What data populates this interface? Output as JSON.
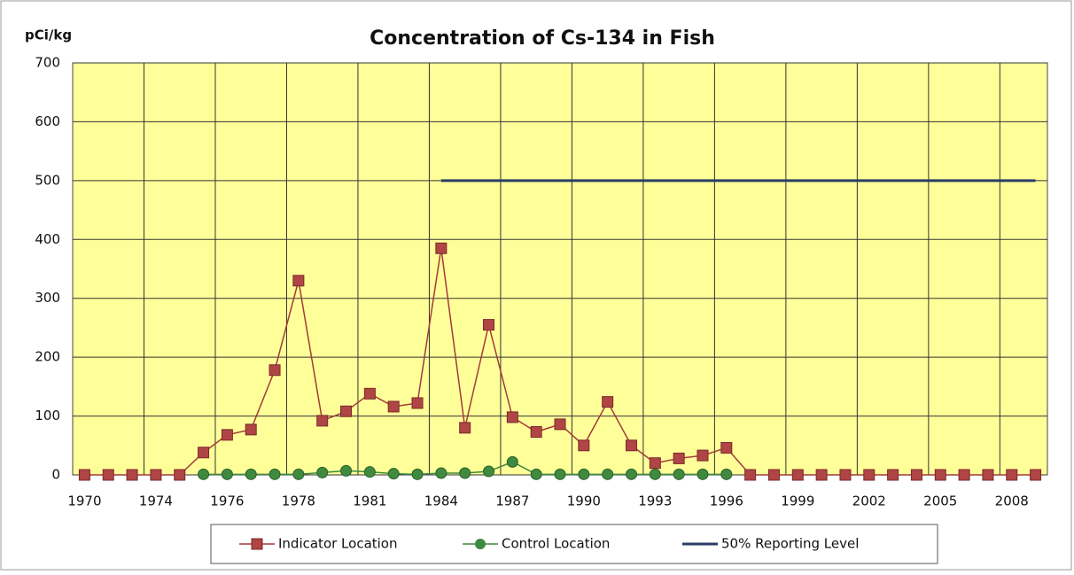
{
  "chart_data": {
    "type": "line",
    "title": "Concentration of Cs-134 in Fish",
    "y_label": "pCi/kg",
    "categories": [
      "1970",
      null,
      null,
      "1974",
      null,
      null,
      "1976",
      null,
      null,
      "1978",
      null,
      null,
      "1981",
      null,
      null,
      "1984",
      null,
      null,
      "1987",
      null,
      null,
      "1990",
      null,
      null,
      "1993",
      null,
      null,
      "1996",
      null,
      null,
      "1999",
      null,
      null,
      "2002",
      null,
      null,
      "2005",
      null,
      null,
      "2008",
      null
    ],
    "series": [
      {
        "name": "Indicator Location",
        "color": "#a33a3a",
        "marker": "square",
        "values": [
          0,
          0,
          0,
          0,
          0,
          38,
          68,
          77,
          178,
          330,
          92,
          108,
          138,
          116,
          122,
          385,
          80,
          255,
          98,
          73,
          86,
          50,
          124,
          50,
          20,
          28,
          33,
          46,
          0,
          0,
          0,
          0,
          0,
          0,
          0,
          0,
          0,
          0,
          0,
          0,
          0
        ]
      },
      {
        "name": "Control Location",
        "color": "#3f8a3f",
        "marker": "circle",
        "values": [
          null,
          null,
          null,
          null,
          null,
          1,
          1,
          1,
          1,
          1,
          4,
          7,
          5,
          2,
          1,
          3,
          3,
          6,
          22,
          1,
          1,
          1,
          1,
          1,
          1,
          1,
          1,
          1,
          null,
          null,
          null,
          null,
          null,
          null,
          null,
          null,
          null,
          null,
          null,
          null,
          null
        ]
      },
      {
        "name": "50% Reporting Level",
        "color": "#2a3d66",
        "marker": "none",
        "values": [
          null,
          null,
          null,
          null,
          null,
          null,
          null,
          null,
          null,
          null,
          null,
          null,
          null,
          null,
          null,
          500,
          500,
          500,
          500,
          500,
          500,
          500,
          500,
          500,
          500,
          500,
          500,
          500,
          500,
          500,
          500,
          500,
          500,
          500,
          500,
          500,
          500,
          500,
          500,
          500,
          500
        ]
      }
    ],
    "ylim": [
      0,
      700
    ],
    "yticks": [
      0,
      100,
      200,
      300,
      400,
      500,
      600,
      700
    ],
    "grid": true,
    "legend": "bottom",
    "plot_color": "#ffff99"
  }
}
